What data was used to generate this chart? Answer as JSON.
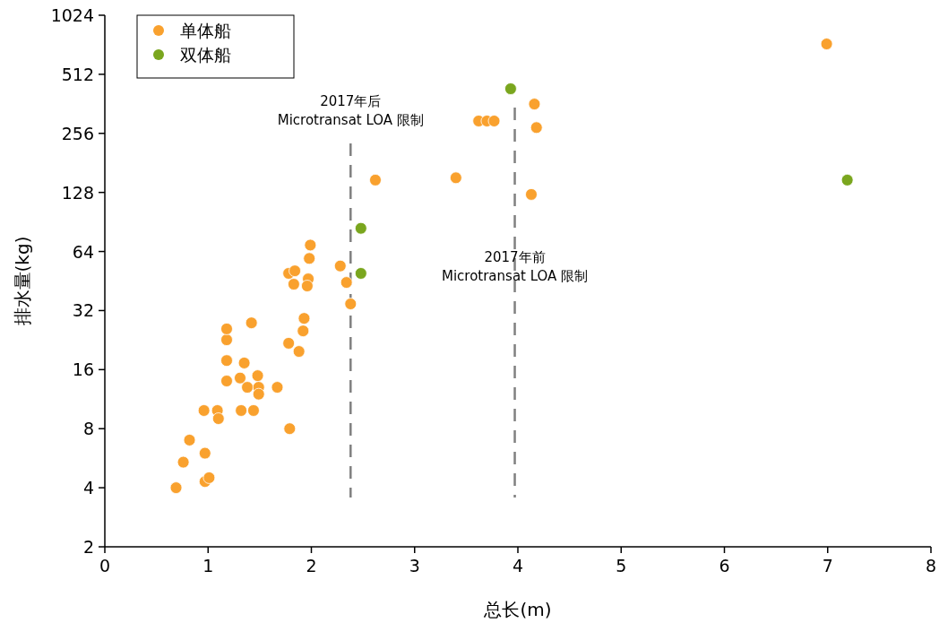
{
  "chart_data": {
    "type": "scatter",
    "xlabel": "总长(m)",
    "ylabel": "排水量(kg)",
    "log": "y",
    "xlim": [
      0,
      8
    ],
    "xticks": [
      0,
      1,
      2,
      3,
      4,
      5,
      6,
      7,
      8
    ],
    "ylim": [
      2,
      1024
    ],
    "yticks": [
      2,
      4,
      8,
      16,
      32,
      64,
      128,
      256,
      512,
      1024
    ],
    "grid": false,
    "legend": "top left",
    "marker": "circle",
    "series": [
      {
        "name": "单体船",
        "color": "#f9a12e",
        "x": [
          0.69,
          0.76,
          0.82,
          0.97,
          0.97,
          1.01,
          0.96,
          1.09,
          1.1,
          1.18,
          1.18,
          1.18,
          1.18,
          1.42,
          1.31,
          1.32,
          1.35,
          1.38,
          1.44,
          1.48,
          1.49,
          1.49,
          1.67,
          1.79,
          1.78,
          1.88,
          1.92,
          1.93,
          1.78,
          1.84,
          1.83,
          1.97,
          1.96,
          1.98,
          1.99,
          2.28,
          2.34,
          2.38,
          2.62,
          3.4,
          3.62,
          3.7,
          3.77,
          4.16,
          4.18,
          4.13,
          6.99
        ],
        "values": [
          4.0,
          5.4,
          7.0,
          6.0,
          4.3,
          4.5,
          9.9,
          9.9,
          9.0,
          14,
          17.8,
          22.7,
          25.8,
          27.7,
          14.5,
          9.9,
          17.3,
          13,
          9.9,
          14.9,
          13,
          12,
          13,
          8,
          21.8,
          19.8,
          25.2,
          29.2,
          49.5,
          51,
          43.6,
          46.4,
          42.7,
          59,
          69,
          54,
          44.5,
          34.6,
          148,
          152,
          296,
          296,
          296,
          361,
          274,
          125,
          731
        ]
      },
      {
        "name": "双体船",
        "color": "#7aa61e",
        "x": [
          3.93,
          2.48,
          2.48,
          7.19
        ],
        "values": [
          432,
          84,
          49.5,
          148
        ]
      }
    ],
    "ref_lines": [
      {
        "axis": "x",
        "value": 2.38,
        "label": "2017年后\nMicrotransat LOA 限制",
        "color": "#808080",
        "line_style": "dashed"
      },
      {
        "axis": "x",
        "value": 3.97,
        "label": "2017年前\nMicrotransat LOA 限制",
        "color": "#808080",
        "line_style": "dashed"
      }
    ]
  }
}
